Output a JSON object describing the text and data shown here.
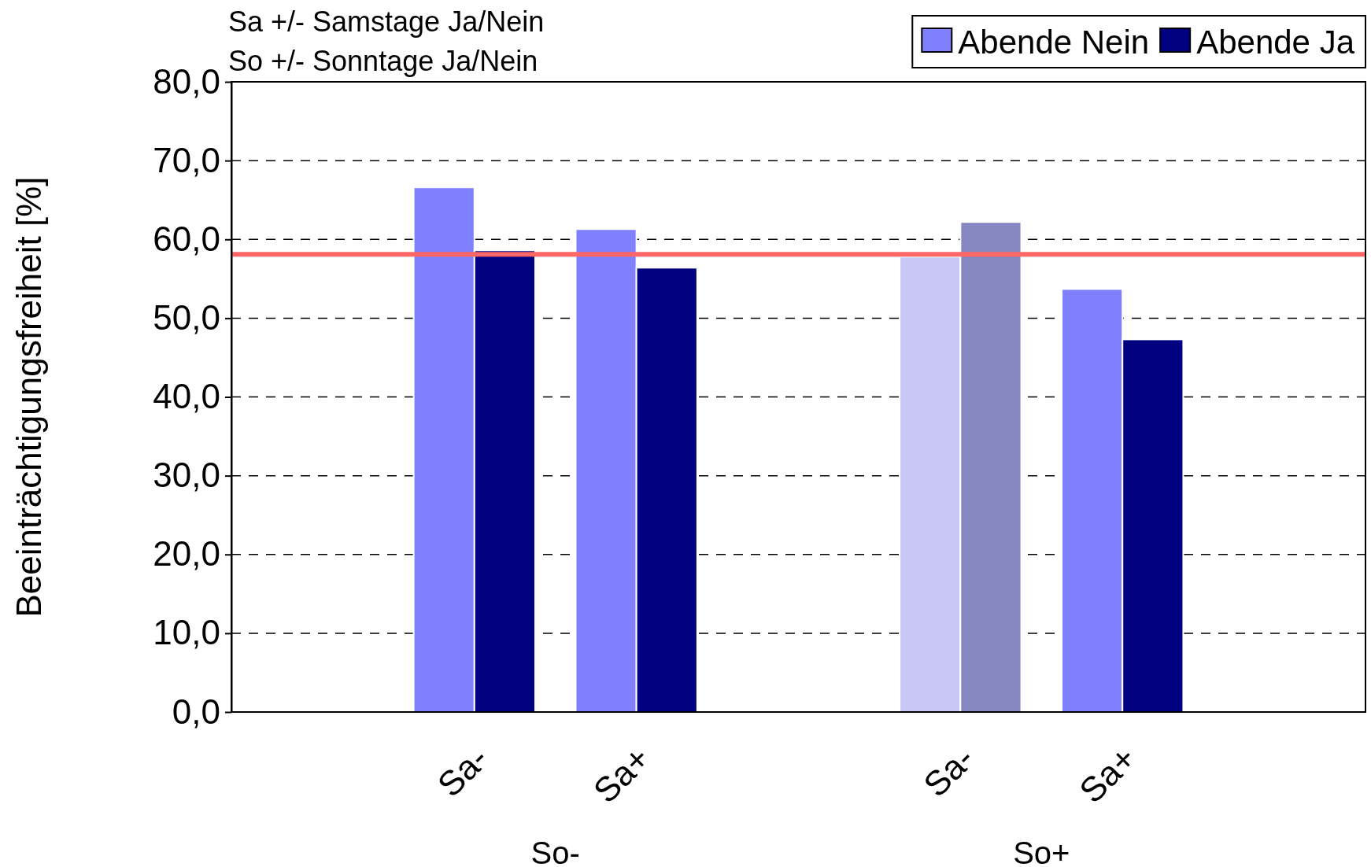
{
  "chart_data": {
    "type": "bar",
    "title": "Sa +/- Samstage Ja/Nein",
    "subtitle": "So +/- Sonntage Ja/Nein",
    "ylabel": "Beeinträchtigungsfreiheit [%]",
    "categories": [
      null,
      "Sa-",
      "Sa+",
      null,
      "Sa-",
      "Sa+",
      null
    ],
    "series": [
      {
        "name": "Abende Nein",
        "color": "#8080ff",
        "colors": [
          "#8080ff",
          "#8080ff",
          "#8080ff",
          "#8080ff",
          "#c8c8f4",
          "#8080ff",
          "#8080ff"
        ],
        "values": [
          null,
          66.6,
          61.3,
          null,
          57.8,
          53.7,
          null
        ]
      },
      {
        "name": "Abende Ja",
        "color": "#000080",
        "colors": [
          "#000080",
          "#000080",
          "#000080",
          "#000080",
          "#8686c0",
          "#000080",
          "#000080"
        ],
        "values": [
          null,
          58.6,
          56.4,
          null,
          62.2,
          47.3,
          null
        ]
      }
    ],
    "annotations": [
      "So-",
      "So+"
    ],
    "ylim": [
      0,
      80
    ],
    "yticks": [
      {
        "value": 0,
        "label": "0,0"
      },
      {
        "value": 10,
        "label": "10,0"
      },
      {
        "value": 20,
        "label": "20,0"
      },
      {
        "value": 30,
        "label": "30,0"
      },
      {
        "value": 40,
        "label": "40,0"
      },
      {
        "value": 50,
        "label": "50,0"
      },
      {
        "value": 60,
        "label": "60,0"
      },
      {
        "value": 70,
        "label": "70,0"
      },
      {
        "value": 80,
        "label": "80,0"
      }
    ],
    "grid": "y",
    "legend": "top right",
    "ref_lines": [
      {
        "axis": "y",
        "value": 58.1,
        "color": "#ff6666"
      }
    ]
  }
}
